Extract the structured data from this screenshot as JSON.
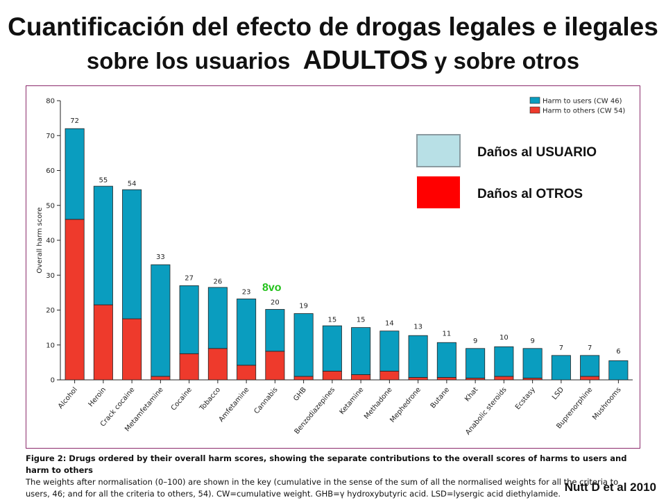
{
  "title_line1": "Cuantificación del efecto de drogas legales e ilegales",
  "title_line2a": "sobre los usuarios",
  "title_line2b": "ADULTOS",
  "title_line2c": "y sobre otros",
  "overlay_legend": {
    "users_label": "Daños al USUARIO",
    "others_label": "Daños al OTROS",
    "users_color": "#b8e0e6",
    "others_color": "#ff0000"
  },
  "rank_note": "8vo",
  "caption_bold": "Figure 2: Drugs ordered by their overall harm scores, showing the separate contributions to the overall scores of harms to users and harm to others",
  "caption_text": "The weights after normalisation (0–100) are shown in the key (cumulative in the sense of the sum of all the normalised weights for all the criteria to users, 46; and for all the criteria to others, 54). CW=cumulative weight. GHB=γ hydroxybutyric acid. LSD=lysergic acid diethylamide.",
  "citation": "Nutt D et al 2010",
  "chart_data": {
    "type": "bar",
    "stacked": true,
    "ylabel": "Overall harm score",
    "ylim": [
      0,
      80
    ],
    "yticks": [
      0,
      10,
      20,
      30,
      40,
      50,
      60,
      70,
      80
    ],
    "categories": [
      "Alcohol",
      "Heroin",
      "Crack cocaine",
      "Metamfetamine",
      "Cocaine",
      "Tobacco",
      "Amfetamine",
      "Cannabis",
      "GHB",
      "Benzodiazepines",
      "Ketamine",
      "Methadone",
      "Mephedrone",
      "Butane",
      "Khat",
      "Anabolic steroids",
      "Ecstasy",
      "LSD",
      "Buprenorphine",
      "Mushrooms"
    ],
    "totals": [
      72,
      55,
      54,
      33,
      27,
      26,
      23,
      20,
      19,
      15,
      15,
      14,
      13,
      11,
      9,
      10,
      9,
      7,
      7,
      6
    ],
    "series": [
      {
        "name": "Harm to users (CW 46)",
        "color": "#0a9dbf",
        "values": [
          26,
          34,
          37,
          32,
          19.5,
          17.5,
          19,
          12,
          18,
          13,
          13.5,
          11.5,
          12,
          10,
          8.5,
          8.5,
          8.5,
          7,
          6,
          5.5
        ]
      },
      {
        "name": "Harm to others (CW 54)",
        "color": "#ee3a2c",
        "values": [
          46,
          21.5,
          17.5,
          1,
          7.5,
          9,
          4.2,
          8.2,
          1,
          2.5,
          1.5,
          2.5,
          0.7,
          0.7,
          0.5,
          1,
          0.5,
          0,
          1,
          0
        ]
      }
    ]
  }
}
